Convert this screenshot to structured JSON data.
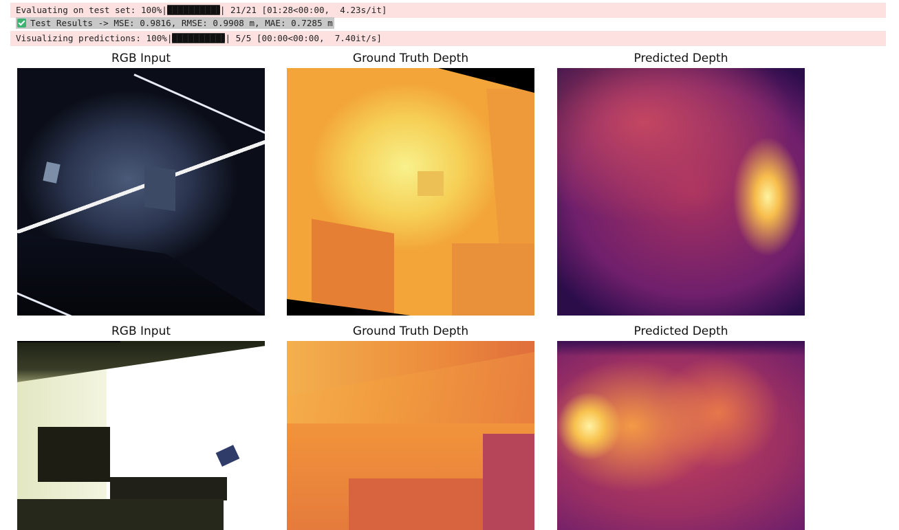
{
  "console": {
    "line1": {
      "prefix": "Evaluating on test set: 100%|",
      "suffix": "| 21/21 [01:28<00:00,  4.23s/it]",
      "progress": 1.0
    },
    "line2": {
      "text": "Test Results -> MSE: 0.9816, RMSE: 0.9908 m, MAE: 0.7285 m",
      "icon": "check-icon"
    },
    "line3": {
      "prefix": "Visualizing predictions: 100%|",
      "suffix": "| 5/5 [00:00<00:00,  7.40it/s]",
      "progress": 1.0
    },
    "stderr_color": "#fde1e1"
  },
  "figure": {
    "rows": [
      {
        "titles": [
          "RGB Input",
          "Ground Truth Depth",
          "Predicted Depth"
        ]
      },
      {
        "titles": [
          "RGB Input",
          "Ground Truth Depth",
          "Predicted Depth"
        ]
      }
    ],
    "colormap": "inferno"
  }
}
